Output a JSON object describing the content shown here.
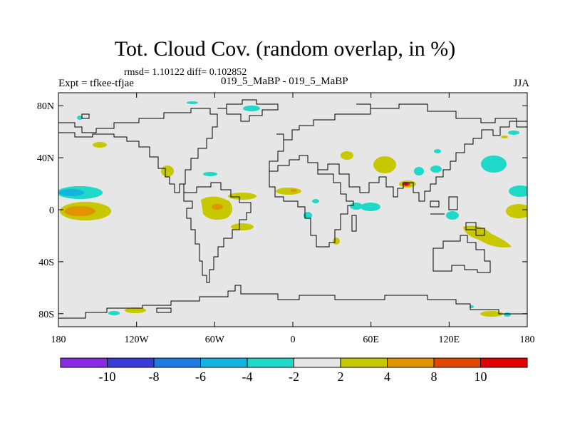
{
  "header": {
    "title": "Tot. Cloud Cov. (random overlap, in %)",
    "stats": "rmsd= 1.10122 diff= 0.102852",
    "experiment": "Expt = tfkee-tfjae",
    "case": "019_5_MaBP - 019_5_MaBP",
    "season": "JJA"
  },
  "map": {
    "projection": "cylindrical-equidistant",
    "lon_range": [
      -180,
      180
    ],
    "lat_range": [
      -90,
      90
    ],
    "background_color": "#e6e6e6",
    "y_ticks": [
      {
        "lat": 80,
        "label": "80N"
      },
      {
        "lat": 40,
        "label": "40N"
      },
      {
        "lat": 0,
        "label": "0"
      },
      {
        "lat": -40,
        "label": "40S"
      },
      {
        "lat": -80,
        "label": "80S"
      }
    ],
    "x_ticks": [
      {
        "lon": -180,
        "label": "180"
      },
      {
        "lon": -120,
        "label": "120W"
      },
      {
        "lon": -60,
        "label": "60W"
      },
      {
        "lon": 0,
        "label": "0"
      },
      {
        "lon": 60,
        "label": "60E"
      },
      {
        "lon": 120,
        "label": "120E"
      },
      {
        "lon": 180,
        "label": "180"
      }
    ]
  },
  "colorbar": {
    "colors": [
      "#8a2be2",
      "#3a3ad6",
      "#1e7be0",
      "#14b4e0",
      "#1ed8c8",
      "#e6e6e6",
      "#c8c800",
      "#e09400",
      "#e04a00",
      "#e00000"
    ],
    "labels": [
      "-10",
      "-8",
      "-6",
      "-4",
      "-2",
      "2",
      "4",
      "8",
      "10"
    ]
  }
}
